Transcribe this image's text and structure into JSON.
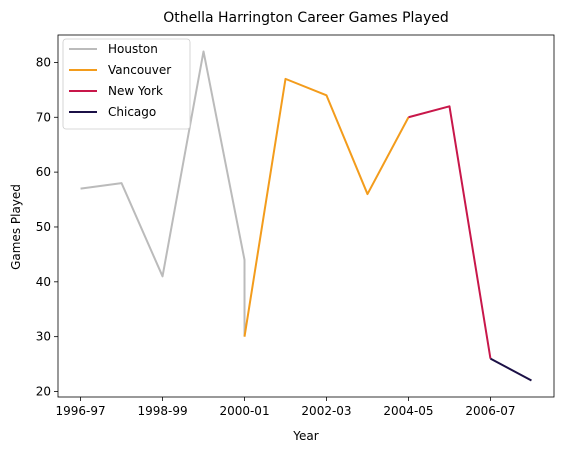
{
  "chart_data": {
    "type": "line",
    "title": "Othella Harrington Career Games Played",
    "xlabel": "Year",
    "ylabel": "Games Played",
    "x_ticks": [
      "1996-97",
      "1998-99",
      "2000-01",
      "2002-03",
      "2004-05",
      "2006-07"
    ],
    "y_ticks": [
      20,
      30,
      40,
      50,
      60,
      70,
      80
    ],
    "ylim": [
      19,
      85
    ],
    "grid": false,
    "legend_position": "top-left",
    "series": [
      {
        "name": "Houston",
        "color": "#bbbbbb",
        "points": [
          [
            "1996-97",
            57
          ],
          [
            "1997-98",
            58
          ],
          [
            "1998-99",
            41
          ],
          [
            "1999-00",
            82
          ],
          [
            "2000-01",
            44
          ],
          [
            "2000-01",
            30
          ]
        ]
      },
      {
        "name": "Vancouver",
        "color": "#f39c1c",
        "points": [
          [
            "2000-01",
            30
          ],
          [
            "2001-02",
            77
          ],
          [
            "2002-03",
            74
          ],
          [
            "2003-04",
            56
          ],
          [
            "2004-05",
            70
          ]
        ]
      },
      {
        "name": "New York",
        "color": "#c8174a",
        "points": [
          [
            "2004-05",
            70
          ],
          [
            "2005-06",
            72
          ],
          [
            "2006-07",
            26
          ]
        ]
      },
      {
        "name": "Chicago",
        "color": "#1b1046",
        "points": [
          [
            "2006-07",
            26
          ],
          [
            "2007-08",
            22
          ]
        ]
      }
    ]
  }
}
